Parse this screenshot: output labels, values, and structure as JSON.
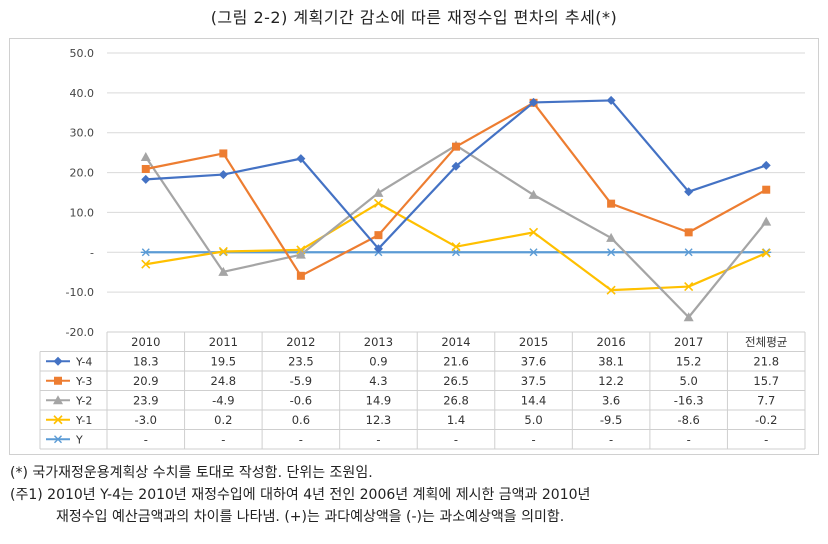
{
  "title": "(그림 2-2) 계획기간 감소에 따른 재정수입 편차의 추세(*)",
  "notes": [
    "(*) 국가재정운용계획상 수치를 토대로 작성함. 단위는 조원임.",
    "(주1) 2010년 Y-4는 2010년 재정수입에 대하여 4년 전인 2006년 계획에 제시한 금액과 2010년",
    "재정수입 예산금액과의 차이를 나타냄. (+)는 과다예상액을 (-)는 과소예상액을 의미함."
  ],
  "chart_data": {
    "type": "line",
    "title": "",
    "xlabel": "",
    "ylabel": "",
    "ylim": [
      -20,
      50
    ],
    "y_ticks": [
      "50.0",
      "40.0",
      "30.0",
      "20.0",
      "10.0",
      "-",
      "-10.0",
      "-20.0"
    ],
    "y_tick_values": [
      50,
      40,
      30,
      20,
      10,
      0,
      -10,
      -20
    ],
    "categories": [
      "2010",
      "2011",
      "2012",
      "2013",
      "2014",
      "2015",
      "2016",
      "2017",
      "전체평균"
    ],
    "grid": true,
    "legend": "data-table",
    "series": [
      {
        "name": "Y-4",
        "color": "#4472c4",
        "marker": "diamond",
        "values": [
          18.3,
          19.5,
          23.5,
          0.9,
          21.6,
          37.6,
          38.1,
          15.2,
          21.8
        ],
        "labels": [
          "18.3",
          "19.5",
          "23.5",
          "0.9",
          "21.6",
          "37.6",
          "38.1",
          "15.2",
          "21.8"
        ]
      },
      {
        "name": "Y-3",
        "color": "#ed7d31",
        "marker": "square",
        "values": [
          20.9,
          24.8,
          -5.9,
          4.3,
          26.5,
          37.5,
          12.2,
          5.0,
          15.7
        ],
        "labels": [
          "20.9",
          "24.8",
          "-5.9",
          "4.3",
          "26.5",
          "37.5",
          "12.2",
          "5.0",
          "15.7"
        ]
      },
      {
        "name": "Y-2",
        "color": "#a5a5a5",
        "marker": "triangle",
        "values": [
          23.9,
          -4.9,
          -0.6,
          14.9,
          26.8,
          14.4,
          3.6,
          -16.3,
          7.7
        ],
        "labels": [
          "23.9",
          "-4.9",
          "-0.6",
          "14.9",
          "26.8",
          "14.4",
          "3.6",
          "-16.3",
          "7.7"
        ]
      },
      {
        "name": "Y-1",
        "color": "#ffc000",
        "marker": "x",
        "values": [
          -3.0,
          0.2,
          0.6,
          12.3,
          1.4,
          5.0,
          -9.5,
          -8.6,
          -0.2
        ],
        "labels": [
          "-3.0",
          "0.2",
          "0.6",
          "12.3",
          "1.4",
          "5.0",
          "-9.5",
          "-8.6",
          "-0.2"
        ]
      },
      {
        "name": "Y",
        "color": "#5b9bd5",
        "marker": "star",
        "values": [
          0,
          0,
          0,
          0,
          0,
          0,
          0,
          0,
          0
        ],
        "labels": [
          "-",
          "-",
          "-",
          "-",
          "-",
          "-",
          "-",
          "-",
          "-"
        ]
      }
    ]
  }
}
